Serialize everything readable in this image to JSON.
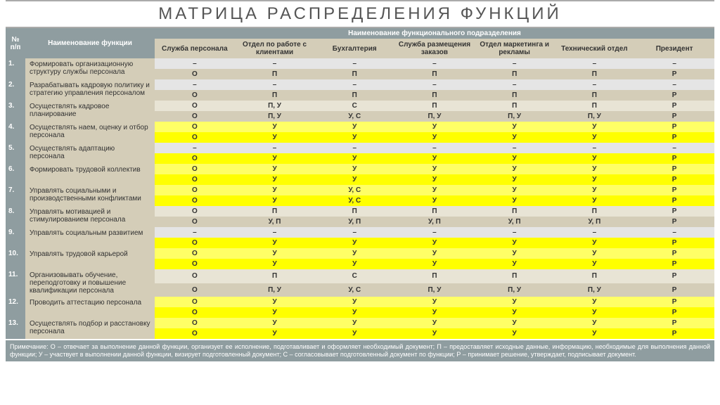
{
  "title": "МАТРИЦА РАСПРЕДЕЛЕНИЯ ФУНКЦИЙ",
  "head": {
    "num": "№ п/п",
    "func": "Наименование функции",
    "dept_group": "Наименование функционального подразделения",
    "depts": [
      "Служба персонала",
      "Отдел по работе с клиентами",
      "Бухгалтерия",
      "Служба размещения заказов",
      "Отдел маркетинга и рекламы",
      "Технический отдел",
      "Президент"
    ]
  },
  "colors": {
    "beige": "#d4cdb8",
    "lt_beige": "#e8e4d5",
    "yellow": "#ffff00",
    "lt_yellow": "#ffff66",
    "lt_gray": "#e5e5e5",
    "gray": "#8f9da0"
  },
  "rows": [
    {
      "n": "1.",
      "func": "Формировать организационную структуру службы персонала",
      "r1": {
        "c": [
          "–",
          "–",
          "–",
          "–",
          "–",
          "–",
          "–"
        ],
        "bg": "lt_gray"
      },
      "r2": {
        "c": [
          "О",
          "П",
          "П",
          "П",
          "П",
          "П",
          "Р"
        ],
        "bg": "beige"
      }
    },
    {
      "n": "2.",
      "func": "Разрабатывать кадровую политику и стратегию управления персоналом",
      "r1": {
        "c": [
          "–",
          "–",
          "–",
          "–",
          "–",
          "–",
          "–"
        ],
        "bg": "lt_gray"
      },
      "r2": {
        "c": [
          "О",
          "П",
          "П",
          "П",
          "П",
          "П",
          "Р"
        ],
        "bg": "beige"
      }
    },
    {
      "n": "3.",
      "func": "Осуществлять кадровое планирование",
      "r1": {
        "c": [
          "О",
          "П, У",
          "С",
          "П",
          "П",
          "П",
          "Р"
        ],
        "bg": "lt_beige"
      },
      "r2": {
        "c": [
          "О",
          "П, У",
          "У, С",
          "П, У",
          "П, У",
          "П, У",
          "Р"
        ],
        "bg": "beige"
      }
    },
    {
      "n": "4.",
      "func": "Осуществлять наем, оценку и отбор персонала",
      "r1": {
        "c": [
          "О",
          "У",
          "У",
          "У",
          "У",
          "У",
          "Р"
        ],
        "bg": "lt_yellow"
      },
      "r2": {
        "c": [
          "О",
          "У",
          "У",
          "У",
          "У",
          "У",
          "Р"
        ],
        "bg": "yellow"
      }
    },
    {
      "n": "5.",
      "func": "Осуществлять адаптацию персонала",
      "r1": {
        "c": [
          "–",
          "–",
          "–",
          "–",
          "–",
          "–",
          "–"
        ],
        "bg": "lt_gray"
      },
      "r2": {
        "c": [
          "О",
          "У",
          "У",
          "У",
          "У",
          "У",
          "Р"
        ],
        "bg": "yellow"
      }
    },
    {
      "n": "6.",
      "func": "Формировать трудовой коллектив",
      "r1": {
        "c": [
          "О",
          "У",
          "У",
          "У",
          "У",
          "У",
          "Р"
        ],
        "bg": "lt_yellow"
      },
      "r2": {
        "c": [
          "О",
          "У",
          "У",
          "У",
          "У",
          "У",
          "Р"
        ],
        "bg": "yellow"
      }
    },
    {
      "n": "7.",
      "func": "Управлять социальными и производственными конфликтами",
      "r1": {
        "c": [
          "О",
          "У",
          "У, С",
          "У",
          "У",
          "У",
          "Р"
        ],
        "bg": "lt_yellow"
      },
      "r2": {
        "c": [
          "О",
          "У",
          "У, С",
          "У",
          "У",
          "У",
          "Р"
        ],
        "bg": "yellow"
      }
    },
    {
      "n": "8.",
      "func": "Управлять мотивацией и стимулированием персонала",
      "r1": {
        "c": [
          "О",
          "П",
          "П",
          "П",
          "П",
          "П",
          "Р"
        ],
        "bg": "lt_beige"
      },
      "r2": {
        "c": [
          "О",
          "У, П",
          "У, П",
          "У, П",
          "У, П",
          "У, П",
          "Р"
        ],
        "bg": "beige"
      }
    },
    {
      "n": "9.",
      "func": "Управлять социальным развитием",
      "r1": {
        "c": [
          "–",
          "–",
          "–",
          "–",
          "–",
          "–",
          "–"
        ],
        "bg": "lt_gray"
      },
      "r2": {
        "c": [
          "О",
          "У",
          "У",
          "У",
          "У",
          "У",
          "Р"
        ],
        "bg": "yellow"
      }
    },
    {
      "n": "10.",
      "func": "Управлять трудовой карьерой",
      "r1": {
        "c": [
          "О",
          "У",
          "У",
          "У",
          "У",
          "У",
          "Р"
        ],
        "bg": "lt_yellow"
      },
      "r2": {
        "c": [
          "О",
          "У",
          "У",
          "У",
          "У",
          "У",
          "Р"
        ],
        "bg": "yellow"
      }
    },
    {
      "n": "11.",
      "func": "Организовывать обучение, переподготовку и повышение квалификации персонала",
      "r1": {
        "c": [
          "О",
          "П",
          "С",
          "П",
          "П",
          "П",
          "Р"
        ],
        "bg": "lt_beige"
      },
      "r2": {
        "c": [
          "О",
          "П, У",
          "У, С",
          "П, У",
          "П, У",
          "П, У",
          "Р"
        ],
        "bg": "beige"
      }
    },
    {
      "n": "12.",
      "func": "Проводить аттестацию персонала",
      "r1": {
        "c": [
          "О",
          "У",
          "У",
          "У",
          "У",
          "У",
          "Р"
        ],
        "bg": "lt_yellow"
      },
      "r2": {
        "c": [
          "О",
          "У",
          "У",
          "У",
          "У",
          "У",
          "Р"
        ],
        "bg": "yellow"
      }
    },
    {
      "n": "13.",
      "func": "Осуществлять подбор и расстановку персонала",
      "r1": {
        "c": [
          "О",
          "У",
          "У",
          "У",
          "У",
          "У",
          "Р"
        ],
        "bg": "lt_yellow"
      },
      "r2": {
        "c": [
          "О",
          "У",
          "У",
          "У",
          "У",
          "У",
          "Р"
        ],
        "bg": "yellow"
      }
    }
  ],
  "note": "Примечание: О – отвечает за выполнение данной функции, организует ее исполнение, подготавливает и оформляет необходимый документ; П – предоставляет исходные данные, информацию, необходимые для выполнения данной функции; У – участвует в выполнении данной функции, визирует подготовленный документ; С – согласовывает подготовленный документ по функции; Р – принимает решение, утверждает, подписывает документ."
}
